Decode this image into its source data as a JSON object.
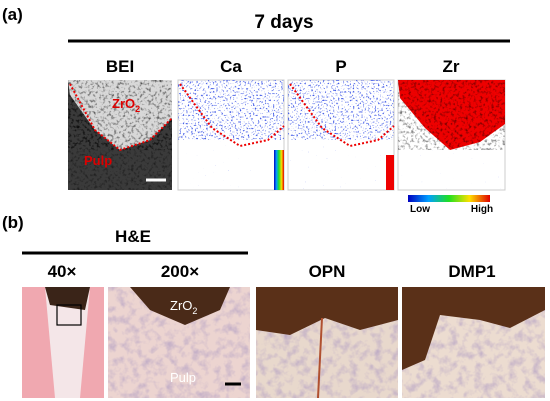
{
  "panel_a": {
    "label": "(a)",
    "title": "7 days",
    "columns": [
      "BEI",
      "Ca",
      "P",
      "Zr"
    ],
    "annotations": {
      "zro2": {
        "base": "ZrO",
        "sub": "2"
      },
      "pulp": "Pulp"
    },
    "colorbar": {
      "low": "Low",
      "high": "High"
    }
  },
  "panel_b": {
    "label": "(b)",
    "group": "H&E",
    "columns": [
      "40×",
      "200×",
      "OPN",
      "DMP1"
    ],
    "annotations": {
      "zro2": {
        "base": "ZrO",
        "sub": "2"
      },
      "pulp": "Pulp"
    }
  }
}
